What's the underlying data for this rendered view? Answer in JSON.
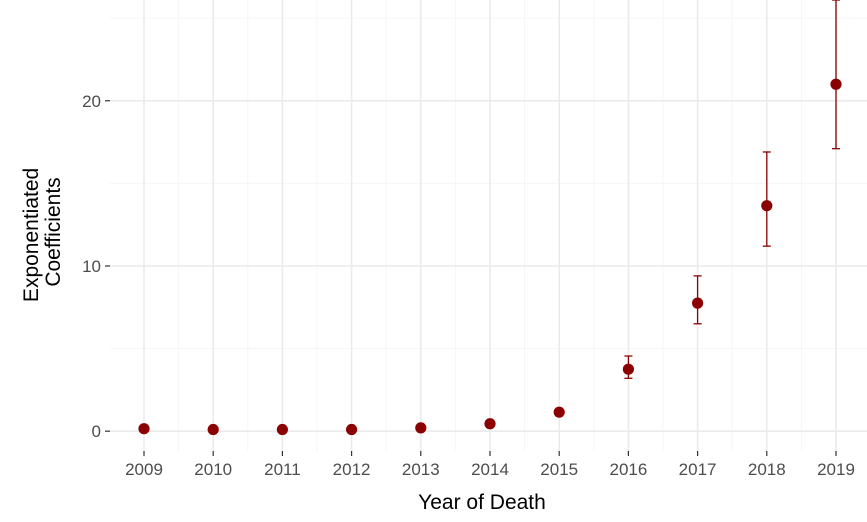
{
  "chart_data": {
    "type": "scatter",
    "title": "",
    "xlabel": "Year of Death",
    "ylabel_lines": [
      "Exponentiated",
      "Coefficients"
    ],
    "x": [
      "2009",
      "2010",
      "2011",
      "2012",
      "2013",
      "2014",
      "2015",
      "2016",
      "2017",
      "2018",
      "2019"
    ],
    "y": [
      0.15,
      0.1,
      0.1,
      0.1,
      0.2,
      0.45,
      1.15,
      3.75,
      7.75,
      13.65,
      21.0
    ],
    "error_low": [
      0.13,
      0.08,
      0.08,
      0.08,
      0.17,
      0.39,
      1.0,
      3.2,
      6.5,
      11.2,
      17.1
    ],
    "error_high": [
      0.17,
      0.12,
      0.12,
      0.12,
      0.24,
      0.52,
      1.32,
      4.55,
      9.4,
      16.9,
      26.1
    ],
    "ylim": [
      -1.2,
      26.1
    ],
    "y_ticks": [
      0,
      10,
      20
    ],
    "grid": true,
    "legend": "none",
    "point_color": "#8b0000",
    "grid_color": "#ebebeb",
    "minor_grid_color": "#f5f5f5"
  }
}
